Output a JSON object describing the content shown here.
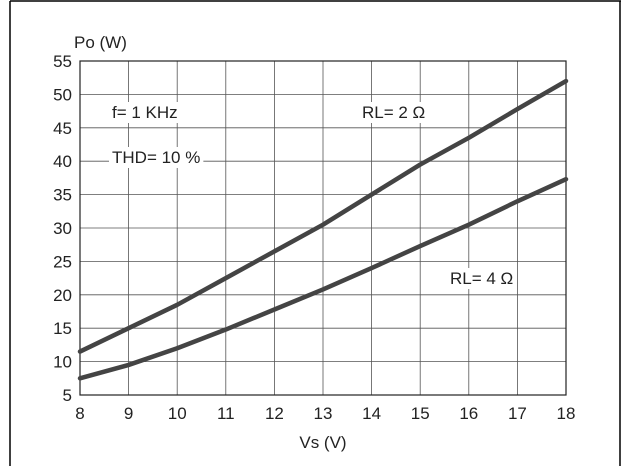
{
  "chart_data": {
    "type": "line",
    "title": "",
    "ylabel": "Po (W)",
    "xlabel": "Vs (V)",
    "xlim": [
      8,
      18
    ],
    "ylim": [
      5,
      55
    ],
    "x_ticks": [
      "8",
      "9",
      "10",
      "11",
      "12",
      "13",
      "14",
      "15",
      "16",
      "17",
      "18"
    ],
    "y_ticks": [
      "5",
      "10",
      "15",
      "20",
      "25",
      "30",
      "35",
      "40",
      "45",
      "50",
      "55"
    ],
    "grid": true,
    "legend": "none",
    "line_color": "#444444",
    "annotations": [
      "f= 1 KHz",
      "THD= 10 %"
    ],
    "x": [
      8,
      9,
      10,
      11,
      12,
      13,
      14,
      15,
      16,
      17,
      18
    ],
    "series": [
      {
        "name": "RL= 2 Ω",
        "values": [
          11.5,
          15.0,
          18.5,
          22.5,
          26.5,
          30.5,
          35.0,
          39.5,
          43.5,
          47.8,
          52.0
        ]
      },
      {
        "name": "RL= 4 Ω",
        "values": [
          7.5,
          9.5,
          12.0,
          14.8,
          17.8,
          20.8,
          24.0,
          27.3,
          30.5,
          34.0,
          37.3
        ]
      }
    ]
  }
}
